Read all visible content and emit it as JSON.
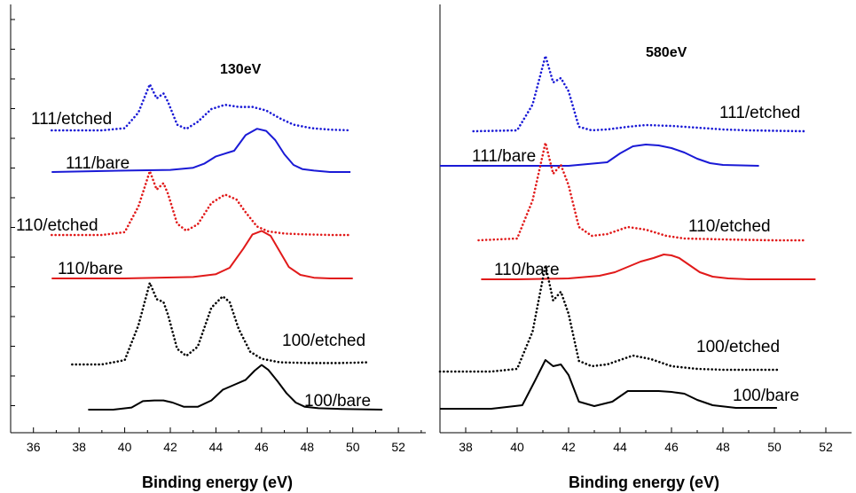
{
  "colors": {
    "blue": "#1a1ad6",
    "red": "#e11a1a",
    "black": "#000000"
  },
  "chart_data": [
    {
      "type": "line",
      "title": "130eV",
      "xlabel": "Binding energy (eV)",
      "ylabel": "",
      "xlim": [
        35,
        53.2
      ],
      "xticks": [
        36,
        38,
        40,
        42,
        44,
        46,
        48,
        50,
        52
      ],
      "y_axis_ticklabels": "none",
      "grid": false,
      "series": [
        {
          "name": "111/etched",
          "color": "blue",
          "style": "dotted",
          "x": [
            36.8,
            39,
            40,
            40.6,
            41.1,
            41.4,
            41.7,
            41.9,
            42.3,
            42.7,
            43.2,
            43.8,
            44.4,
            45,
            45.6,
            46.2,
            46.8,
            47.4,
            48.2,
            49,
            49.9
          ],
          "y": [
            0.0,
            0.0,
            0.03,
            0.25,
            0.65,
            0.45,
            0.52,
            0.4,
            0.08,
            0.02,
            0.12,
            0.3,
            0.36,
            0.33,
            0.33,
            0.28,
            0.17,
            0.08,
            0.03,
            0.01,
            0.0
          ]
        },
        {
          "name": "111/bare",
          "color": "blue",
          "style": "solid",
          "x": [
            36.8,
            40,
            42,
            43,
            43.5,
            44,
            44.4,
            44.8,
            45.3,
            45.8,
            46.2,
            46.6,
            47,
            47.4,
            47.8,
            48.3,
            49,
            49.9
          ],
          "y": [
            0.0,
            0.02,
            0.03,
            0.06,
            0.12,
            0.22,
            0.26,
            0.3,
            0.52,
            0.61,
            0.58,
            0.45,
            0.25,
            0.1,
            0.04,
            0.02,
            0.0,
            0.0
          ]
        },
        {
          "name": "110/etched",
          "color": "red",
          "style": "dotted",
          "x": [
            36.8,
            39,
            40,
            40.6,
            41.1,
            41.4,
            41.7,
            41.9,
            42.3,
            42.7,
            43.2,
            43.8,
            44.4,
            44.9,
            45.3,
            45.8,
            46.3,
            47,
            47.8,
            49,
            49.9
          ],
          "y": [
            0.0,
            0.0,
            0.04,
            0.4,
            0.9,
            0.64,
            0.73,
            0.58,
            0.16,
            0.06,
            0.15,
            0.45,
            0.57,
            0.5,
            0.32,
            0.12,
            0.05,
            0.02,
            0.01,
            0.0,
            0.0
          ]
        },
        {
          "name": "110/bare",
          "color": "red",
          "style": "solid",
          "x": [
            36.8,
            40,
            43,
            44,
            44.6,
            45.2,
            45.6,
            46,
            46.4,
            46.8,
            47.2,
            47.7,
            48.3,
            49,
            50
          ],
          "y": [
            0.0,
            0.0,
            0.02,
            0.06,
            0.15,
            0.42,
            0.62,
            0.67,
            0.6,
            0.38,
            0.16,
            0.05,
            0.01,
            0.0,
            0.0
          ]
        },
        {
          "name": "100/etched",
          "color": "black",
          "style": "dotted",
          "x": [
            37.7,
            39,
            40,
            40.6,
            41.1,
            41.4,
            41.7,
            41.9,
            42.3,
            42.7,
            43.2,
            43.8,
            44.3,
            44.6,
            45,
            45.5,
            46,
            46.8,
            48,
            49.5,
            50.7
          ],
          "y": [
            0.0,
            0.0,
            0.06,
            0.55,
            1.15,
            0.92,
            0.88,
            0.7,
            0.22,
            0.12,
            0.25,
            0.8,
            0.96,
            0.88,
            0.5,
            0.18,
            0.08,
            0.03,
            0.02,
            0.02,
            0.03
          ]
        },
        {
          "name": "100/bare",
          "color": "black",
          "style": "solid",
          "x": [
            38.4,
            39.5,
            40.3,
            40.8,
            41.3,
            41.7,
            42.1,
            42.6,
            43.2,
            43.8,
            44.3,
            44.8,
            45.3,
            45.7,
            46,
            46.3,
            46.7,
            47.1,
            47.5,
            47.9,
            48.5,
            49.5,
            51.3
          ],
          "y": [
            0.0,
            0.0,
            0.03,
            0.12,
            0.13,
            0.13,
            0.1,
            0.04,
            0.04,
            0.13,
            0.28,
            0.35,
            0.42,
            0.55,
            0.63,
            0.56,
            0.4,
            0.23,
            0.1,
            0.04,
            0.02,
            0.01,
            0.0
          ]
        }
      ],
      "annotations": [
        {
          "text": "111/etched",
          "series": "111/etched"
        },
        {
          "text": "111/bare",
          "series": "111/bare"
        },
        {
          "text": "110/etched",
          "series": "110/etched"
        },
        {
          "text": "110/bare",
          "series": "110/bare"
        },
        {
          "text": "100/etched",
          "series": "100/etched"
        },
        {
          "text": "100/bare",
          "series": "100/bare"
        }
      ]
    },
    {
      "type": "line",
      "title": "580eV",
      "xlabel": "Binding energy (eV)",
      "ylabel": "",
      "xlim": [
        37,
        53
      ],
      "xticks": [
        38,
        40,
        42,
        44,
        46,
        48,
        50,
        52
      ],
      "y_axis_ticklabels": "none",
      "grid": false,
      "series": [
        {
          "name": "111/etched",
          "color": "blue",
          "style": "dotted",
          "x": [
            38.3,
            40,
            40.6,
            41.1,
            41.4,
            41.7,
            42,
            42.4,
            42.9,
            43.5,
            44.3,
            45,
            46,
            47,
            48,
            49,
            51.2
          ],
          "y": [
            0.0,
            0.01,
            0.3,
            0.85,
            0.55,
            0.6,
            0.45,
            0.05,
            0.01,
            0.02,
            0.05,
            0.07,
            0.06,
            0.04,
            0.02,
            0.01,
            0.0
          ]
        },
        {
          "name": "111/bare",
          "color": "blue",
          "style": "solid",
          "x": [
            37.0,
            40,
            42,
            43.5,
            44,
            44.5,
            45,
            45.5,
            46,
            46.5,
            47,
            47.5,
            48,
            49.4
          ],
          "y": [
            0.0,
            0.0,
            0.0,
            0.04,
            0.14,
            0.22,
            0.24,
            0.23,
            0.2,
            0.15,
            0.08,
            0.03,
            0.01,
            0.0
          ]
        },
        {
          "name": "110/etched",
          "color": "red",
          "style": "dotted",
          "x": [
            38.5,
            40,
            40.6,
            41.1,
            41.4,
            41.7,
            42,
            42.4,
            42.9,
            43.5,
            44.3,
            45,
            45.8,
            46.5,
            48,
            50,
            51.2
          ],
          "y": [
            0.0,
            0.02,
            0.45,
            1.1,
            0.75,
            0.85,
            0.62,
            0.15,
            0.05,
            0.07,
            0.15,
            0.12,
            0.05,
            0.02,
            0.01,
            0.0,
            0.0
          ]
        },
        {
          "name": "110/bare",
          "color": "red",
          "style": "solid",
          "x": [
            38.6,
            40,
            42,
            43.2,
            43.8,
            44.3,
            44.8,
            45.3,
            45.7,
            46,
            46.3,
            46.7,
            47.1,
            47.6,
            48.2,
            49,
            51.6
          ],
          "y": [
            0.0,
            0.0,
            0.01,
            0.04,
            0.08,
            0.14,
            0.2,
            0.24,
            0.28,
            0.27,
            0.24,
            0.16,
            0.08,
            0.03,
            0.01,
            0.0,
            0.0
          ]
        },
        {
          "name": "100/etched",
          "color": "black",
          "style": "dotted",
          "x": [
            37.0,
            39,
            40,
            40.6,
            41.1,
            41.4,
            41.7,
            42,
            42.4,
            42.9,
            43.5,
            44.5,
            45.2,
            46,
            47,
            48,
            50.1
          ],
          "y": [
            0.0,
            0.0,
            0.03,
            0.45,
            1.2,
            0.8,
            0.9,
            0.65,
            0.12,
            0.06,
            0.08,
            0.18,
            0.14,
            0.06,
            0.03,
            0.02,
            0.02
          ]
        },
        {
          "name": "100/bare",
          "color": "black",
          "style": "solid",
          "x": [
            37.0,
            39,
            40.2,
            40.7,
            41.1,
            41.4,
            41.7,
            42,
            42.4,
            43,
            43.7,
            44.3,
            45,
            45.5,
            46,
            46.5,
            47,
            47.6,
            48.5,
            50.1
          ],
          "y": [
            0.0,
            0.0,
            0.04,
            0.32,
            0.55,
            0.48,
            0.5,
            0.38,
            0.08,
            0.03,
            0.08,
            0.2,
            0.2,
            0.2,
            0.19,
            0.17,
            0.1,
            0.04,
            0.01,
            0.01
          ]
        }
      ],
      "annotations": [
        {
          "text": "111/etched",
          "series": "111/etched"
        },
        {
          "text": "111/bare",
          "series": "111/bare"
        },
        {
          "text": "110/etched",
          "series": "110/etched"
        },
        {
          "text": "110/bare",
          "series": "110/bare"
        },
        {
          "text": "100/etched",
          "series": "100/etched"
        },
        {
          "text": "100/bare",
          "series": "100/bare"
        }
      ]
    }
  ]
}
